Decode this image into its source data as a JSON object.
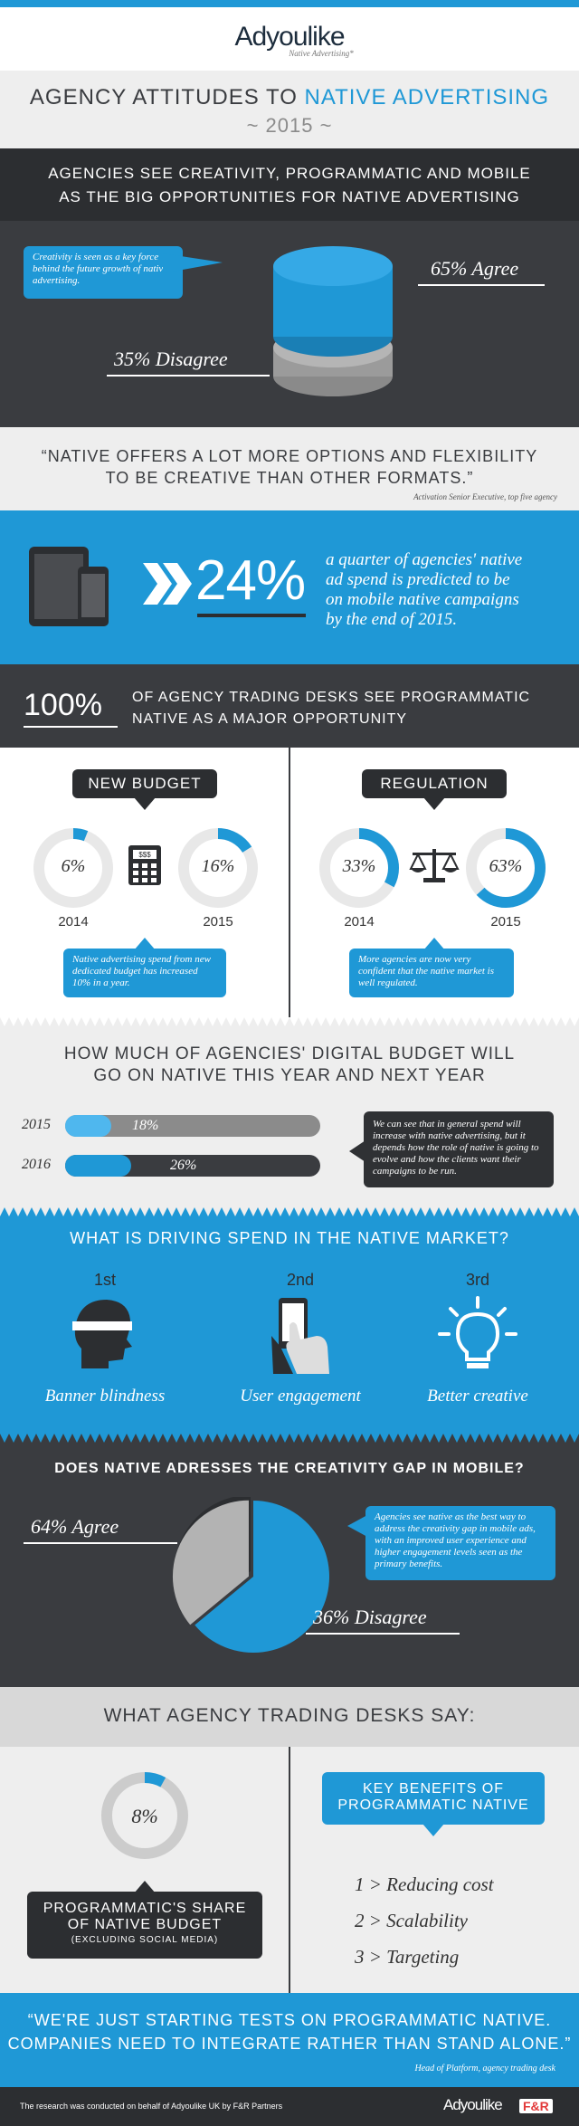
{
  "brand": {
    "logo": "Adyoulike",
    "tagline": "Native Advertising*",
    "partner_logo": "F&R"
  },
  "colors": {
    "blue": "#1f98d6",
    "dark": "#3a3c40",
    "grey": "#8b8b8b",
    "light": "#eeeeee"
  },
  "title": {
    "prefix": "AGENCY ATTITUDES TO",
    "highlight": "NATIVE ADVERTISING",
    "year": "~ 2015 ~"
  },
  "s1": {
    "heading_1": "AGENCIES SEE CREATIVITY, PROGRAMMATIC AND MOBILE",
    "heading_2": "AS THE BIG OPPORTUNITIES FOR NATIVE ADVERTISING",
    "note": "Creativity is seen as a key force behind the future growth of native advertising.",
    "agree": "65% Agree",
    "disagree": "35% Disagree"
  },
  "quote1": {
    "text_1": "“NATIVE OFFERS A LOT MORE OPTIONS AND FLEXIBILITY",
    "text_2": "TO BE CREATIVE THAN OTHER FORMATS.”",
    "source": "Activation Senior Executive, top five agency"
  },
  "mobile": {
    "percent": "24%",
    "text_1": "a quarter of agencies' native",
    "text_2": "ad spend is predicted to be",
    "text_3": "on mobile native campaigns",
    "text_4": "by the end of 2015."
  },
  "programmatic": {
    "percent": "100%",
    "text_1": "OF AGENCY TRADING DESKS SEE PROGRAMMATIC",
    "text_2": "NATIVE AS A MAJOR OPPORTUNITY"
  },
  "budget": {
    "title": "NEW BUDGET",
    "left_value": "6%",
    "left_year": "2014",
    "right_value": "16%",
    "right_year": "2015",
    "note": "Native advertising spend from new dedicated budget has increased 10% in a year."
  },
  "regulation": {
    "title": "REGULATION",
    "left_value": "33%",
    "left_year": "2014",
    "right_value": "63%",
    "right_year": "2015",
    "note": "More agencies are now very confident that the native market is well regulated."
  },
  "digital": {
    "heading_1": "HOW MUCH OF AGENCIES' DIGITAL BUDGET WILL",
    "heading_2": "GO ON NATIVE THIS YEAR AND NEXT YEAR",
    "row1_year": "2015",
    "row1_value": "18%",
    "row2_year": "2016",
    "row2_value": "26%",
    "note": "We can see that in general spend will increase with native advertising, but it depends how the role of native is going to evolve and how the clients want their campaigns to be run."
  },
  "driving": {
    "heading": "WHAT IS DRIVING SPEND IN THE NATIVE MARKET?",
    "items": [
      {
        "rank": "1st",
        "label": "Banner blindness"
      },
      {
        "rank": "2nd",
        "label": "User engagement"
      },
      {
        "rank": "3rd",
        "label": "Better creative"
      }
    ]
  },
  "gap": {
    "heading": "DOES NATIVE ADRESSES THE CREATIVITY GAP IN MOBILE?",
    "agree": "64% Agree",
    "disagree": "36% Disagree",
    "note": "Agencies see native as the best way to address the creativity gap in mobile ads, with an improved user experience and higher engagement levels seen as the primary benefits."
  },
  "desks": {
    "heading": "WHAT AGENCY TRADING DESKS SAY:",
    "share_value": "8%",
    "share_label_1": "PROGRAMMATIC'S SHARE",
    "share_label_2": "OF NATIVE BUDGET",
    "share_label_3": "(EXCLUDING SOCIAL MEDIA)",
    "benefits_title_1": "KEY BENEFITS OF",
    "benefits_title_2": "PROGRAMMATIC NATIVE",
    "benefits": [
      "1 > Reducing cost",
      "2 > Scalability",
      "3 > Targeting"
    ]
  },
  "quote2": {
    "text_1": "“WE'RE JUST STARTING TESTS ON PROGRAMMATIC NATIVE.",
    "text_2": "COMPANIES NEED TO INTEGRATE RATHER THAN STAND ALONE.”",
    "source": "Head of Platform, agency trading desk"
  },
  "footer": {
    "text": "The research was conducted on behalf of Adyoulike UK by F&R Partners"
  },
  "chart_data": [
    {
      "type": "pie",
      "categories": [
        "Agree",
        "Disagree"
      ],
      "values": [
        65,
        35
      ]
    },
    {
      "type": "pie",
      "categories": [
        "2014",
        "2015"
      ],
      "values": [
        6,
        16
      ]
    },
    {
      "type": "pie",
      "categories": [
        "2014",
        "2015"
      ],
      "values": [
        33,
        63
      ]
    },
    {
      "type": "bar",
      "categories": [
        "2015",
        "2016"
      ],
      "values": [
        18,
        26
      ]
    },
    {
      "type": "pie",
      "categories": [
        "Agree",
        "Disagree"
      ],
      "values": [
        64,
        36
      ]
    },
    {
      "type": "pie",
      "categories": [
        "Programmatic share"
      ],
      "values": [
        8
      ]
    }
  ]
}
